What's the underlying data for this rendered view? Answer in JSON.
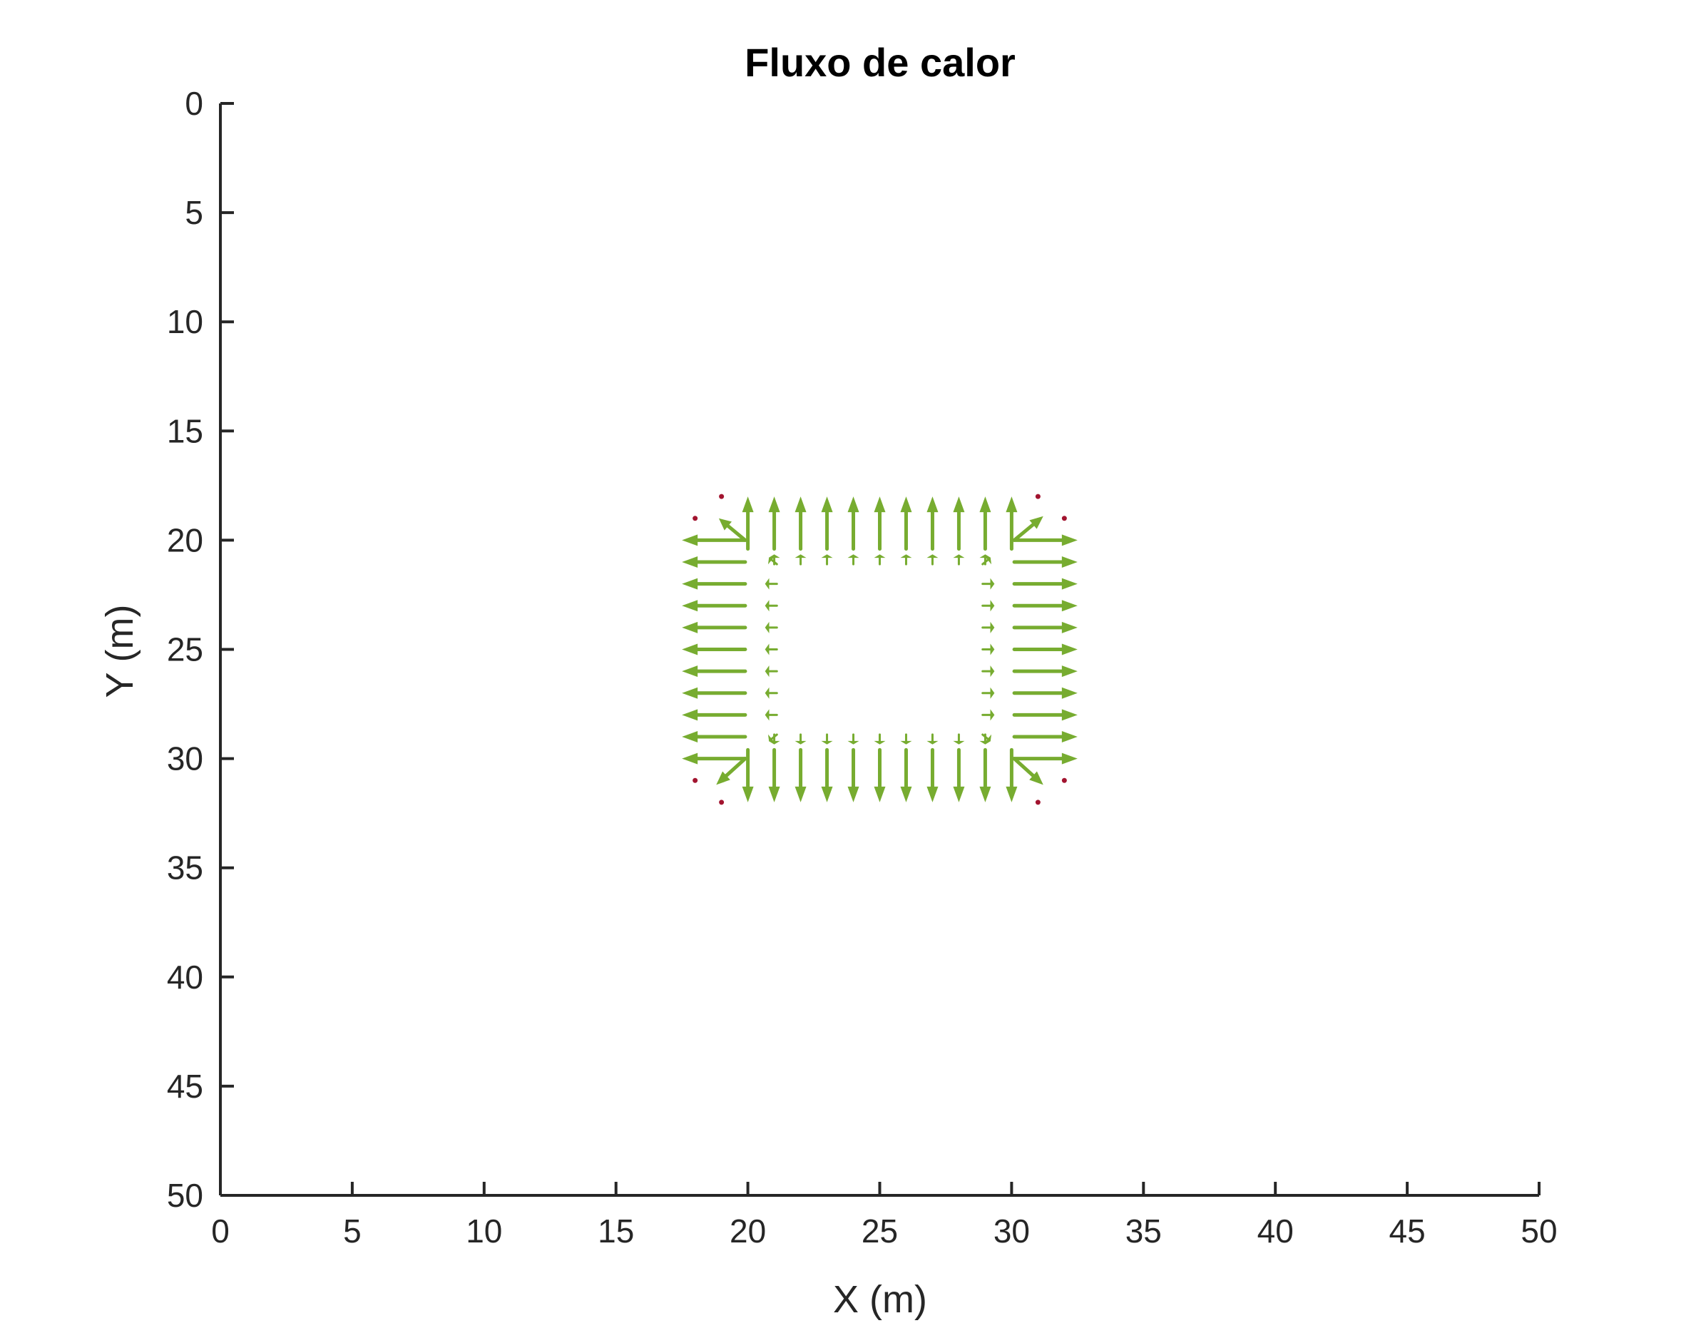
{
  "chart_data": {
    "type": "quiver",
    "title": "Fluxo de calor",
    "xlabel": "X (m)",
    "ylabel": "Y (m)",
    "xlim": [
      0,
      50
    ],
    "ylim": [
      0,
      50
    ],
    "y_direction": "reverse",
    "grid": false,
    "legend": "none",
    "xticks": [
      0,
      5,
      10,
      15,
      20,
      25,
      30,
      35,
      40,
      45,
      50
    ],
    "yticks": [
      0,
      5,
      10,
      15,
      20,
      25,
      30,
      35,
      40,
      45,
      50
    ],
    "xtick_labels": [
      "0",
      "5",
      "10",
      "15",
      "20",
      "25",
      "30",
      "35",
      "40",
      "45",
      "50"
    ],
    "ytick_labels": [
      "0",
      "5",
      "10",
      "15",
      "20",
      "25",
      "30",
      "35",
      "40",
      "45",
      "50"
    ],
    "colors": {
      "arrow": "#77ac30",
      "dot": "#a2142f",
      "axis": "#262626"
    },
    "inner_square": {
      "x": [
        21,
        29
      ],
      "y": [
        21,
        29
      ]
    },
    "outer_square": {
      "x": [
        19,
        31
      ],
      "y": [
        19,
        31
      ]
    },
    "flux_length_m": 2.4,
    "corner_dots": [
      [
        18,
        19
      ],
      [
        19,
        18
      ],
      [
        31,
        18
      ],
      [
        32,
        19
      ],
      [
        18,
        31
      ],
      [
        19,
        32
      ],
      [
        31,
        32
      ],
      [
        32,
        31
      ]
    ]
  }
}
